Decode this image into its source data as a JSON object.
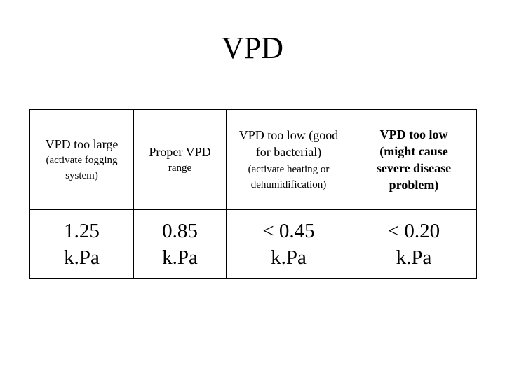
{
  "title": "VPD",
  "columns": [
    {
      "heading_main": "VPD too large",
      "heading_sub": "(activate fogging system)",
      "value_line1": "1.25",
      "value_line2": "k.Pa"
    },
    {
      "heading_main": "Proper VPD",
      "heading_sub": "range",
      "value_line1": "0.85",
      "value_line2": "k.Pa"
    },
    {
      "heading_main": "VPD too low (good for bacterial)",
      "heading_sub": "(activate heating or dehumidification)",
      "value_line1": "< 0.45",
      "value_line2": "k.Pa"
    },
    {
      "heading_main": "VPD too low (might cause severe disease problem)",
      "heading_sub": "",
      "value_line1": "< 0.20",
      "value_line2": "k.Pa"
    }
  ]
}
